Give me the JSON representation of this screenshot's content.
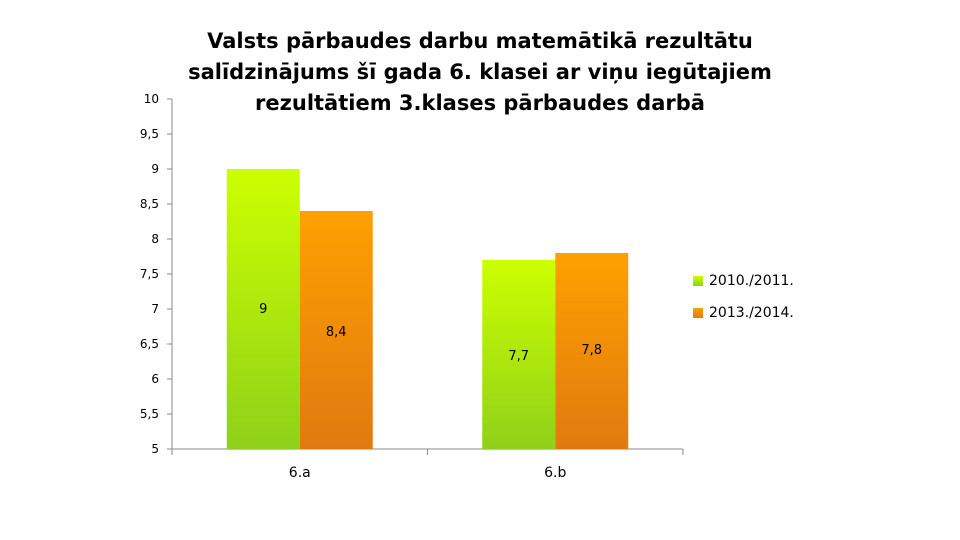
{
  "chart_data": {
    "type": "bar",
    "title": "Valsts pārbaudes darbu matemātikā rezultātu salīdzinājums šī gada 6. klasei ar viņu iegūtajiem rezultātiem 3.klases pārbaudes darbā",
    "categories": [
      "6.a",
      "6.b"
    ],
    "series": [
      {
        "name": "2010./2011.",
        "values": [
          9,
          7.7
        ],
        "labels": [
          "9",
          "7,7"
        ],
        "color_top": "#ccff00",
        "color_bottom": "#8fd11a"
      },
      {
        "name": "2013./2014.",
        "values": [
          8.4,
          7.8
        ],
        "labels": [
          "8,4",
          "7,8"
        ],
        "color_top": "#ffa000",
        "color_bottom": "#e07a10"
      }
    ],
    "ylim": [
      5,
      10
    ],
    "yticks": [
      "5",
      "5,5",
      "6",
      "6,5",
      "7",
      "7,5",
      "8",
      "8,5",
      "9",
      "9,5",
      "10"
    ],
    "grid": false,
    "legend_position": "right",
    "xlabel": "",
    "ylabel": ""
  }
}
